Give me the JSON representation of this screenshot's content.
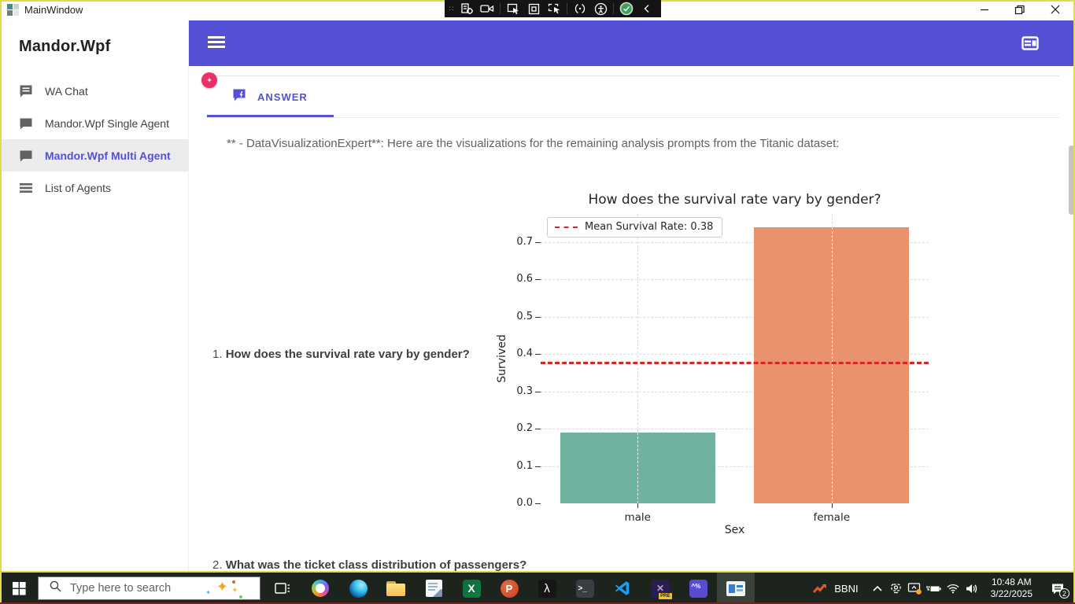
{
  "window": {
    "title": "MainWindow",
    "controls": [
      "minimize",
      "maximize-restore",
      "close"
    ]
  },
  "recording_toolbar": {
    "icons": [
      "grip",
      "capture-settings",
      "video-camera",
      "select-region",
      "stop-record",
      "select-window",
      "toggle-parens",
      "accessibility",
      "confirm-check",
      "collapse-left"
    ]
  },
  "sidebar": {
    "title": "Mandor.Wpf",
    "items": [
      {
        "label": "WA Chat",
        "icon": "chat-lines-icon",
        "selected": false
      },
      {
        "label": "Mandor.Wpf Single Agent",
        "icon": "chat-bubble-icon",
        "selected": false
      },
      {
        "label": "Mandor.Wpf Multi Agent",
        "icon": "chat-bubble-icon",
        "selected": true
      },
      {
        "label": "List of Agents",
        "icon": "list-icon",
        "selected": false
      }
    ]
  },
  "header": {
    "color": "#5451d6",
    "left_icon": "hamburger-menu-icon",
    "right_icon": "web-asset-icon"
  },
  "content": {
    "fab_color": "#ee2e67",
    "tab": {
      "label": "ANSWER",
      "icon": "chat-bolt-icon",
      "accent_color": "#5451d6"
    },
    "message": "** - DataVisualizationExpert**: Here are the visualizations for the remaining analysis prompts from the Titanic dataset:",
    "questions": [
      {
        "number": "1.",
        "text": "How does the survival rate vary by gender?"
      },
      {
        "number": "2.",
        "text": "What was the ticket class distribution of passengers?"
      }
    ]
  },
  "chart_data": {
    "type": "bar",
    "title": "How does the survival rate vary by gender?",
    "categories": [
      "male",
      "female"
    ],
    "values": [
      0.19,
      0.74
    ],
    "bar_colors": [
      "#70b2a0",
      "#e8926e"
    ],
    "mean_value": 0.38,
    "mean_line_color": "#d62728",
    "legend_label": "Mean Survival Rate: 0.38",
    "legend_position": "upper left",
    "xlabel": "Sex",
    "ylabel": "Survived",
    "yticks": [
      0.0,
      0.1,
      0.2,
      0.3,
      0.4,
      0.5,
      0.6,
      0.7
    ],
    "ylim": [
      0,
      0.775
    ],
    "grid": "dashed"
  },
  "taskbar": {
    "background": "#1d231d",
    "search_placeholder": "Type here to search",
    "app_icons": [
      "start",
      "task-view",
      "copilot",
      "edge",
      "file-explorer",
      "notepad",
      "excel",
      "powerpoint",
      "lambda-app",
      "terminal",
      "vscode",
      "premiere-pro",
      "console-app",
      "document-viewer"
    ],
    "tray": {
      "stock_label": "BBNI",
      "icons": [
        "chevron-up",
        "webcam",
        "cast-display",
        "battery-charging",
        "wifi",
        "volume"
      ],
      "time": "10:48 AM",
      "date": "3/22/2025",
      "notification_count": "2"
    }
  }
}
